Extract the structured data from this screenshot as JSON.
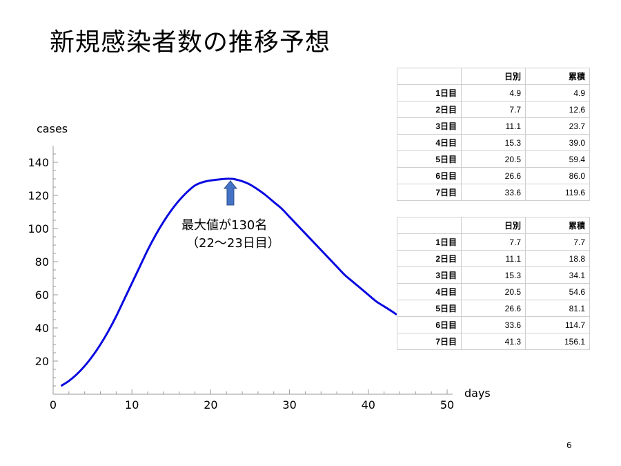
{
  "slide": {
    "title": "新規感染者数の推移予想",
    "page_number": "6"
  },
  "chart_data": {
    "type": "line",
    "title": "",
    "xlabel": "days",
    "ylabel": "cases",
    "xlim": [
      0,
      50
    ],
    "ylim": [
      0,
      150
    ],
    "xticks": [
      0,
      10,
      20,
      30,
      40,
      50
    ],
    "yticks": [
      20,
      40,
      60,
      80,
      100,
      120,
      140
    ],
    "grid": false,
    "line_color": "#0a0ae0",
    "series": [
      {
        "x": [
          1,
          2,
          3,
          4,
          5,
          6,
          7,
          8,
          9,
          10,
          11,
          12,
          13,
          14,
          15,
          16,
          17,
          18,
          19,
          20,
          21,
          22,
          22.5,
          23,
          24,
          25,
          26,
          27,
          28,
          29,
          30,
          31,
          32,
          33,
          34,
          35,
          36,
          37,
          38,
          39,
          40,
          41,
          42,
          43,
          43.6
        ],
        "y": [
          5,
          8,
          12,
          17,
          23,
          30,
          38,
          47,
          57,
          67,
          77,
          87,
          96,
          104,
          111,
          117,
          122,
          126,
          128,
          129,
          129.6,
          130,
          130,
          129.8,
          128.5,
          126.5,
          123.5,
          120,
          116,
          112,
          107,
          102,
          97,
          92,
          87,
          82,
          77,
          72,
          68,
          64,
          60,
          56,
          53,
          50,
          48
        ]
      }
    ],
    "annotations": [
      {
        "text_line1": "最大値が130名",
        "text_line2": "（22～23日目）",
        "arrow_at_x": 22.5,
        "arrow_color": "#4472c4"
      }
    ]
  },
  "tables": [
    {
      "headers": [
        "",
        "日別",
        "累積"
      ],
      "rows": [
        [
          "1日目",
          "4.9",
          "4.9"
        ],
        [
          "2日目",
          "7.7",
          "12.6"
        ],
        [
          "3日目",
          "11.1",
          "23.7"
        ],
        [
          "4日目",
          "15.3",
          "39.0"
        ],
        [
          "5日目",
          "20.5",
          "59.4"
        ],
        [
          "6日目",
          "26.6",
          "86.0"
        ],
        [
          "7日目",
          "33.6",
          "119.6"
        ]
      ]
    },
    {
      "headers": [
        "",
        "日別",
        "累積"
      ],
      "rows": [
        [
          "1日目",
          "7.7",
          "7.7"
        ],
        [
          "2日目",
          "11.1",
          "18.8"
        ],
        [
          "3日目",
          "15.3",
          "34.1"
        ],
        [
          "4日目",
          "20.5",
          "54.6"
        ],
        [
          "5日目",
          "26.6",
          "81.1"
        ],
        [
          "6日目",
          "33.6",
          "114.7"
        ],
        [
          "7日目",
          "41.3",
          "156.1"
        ]
      ]
    }
  ]
}
